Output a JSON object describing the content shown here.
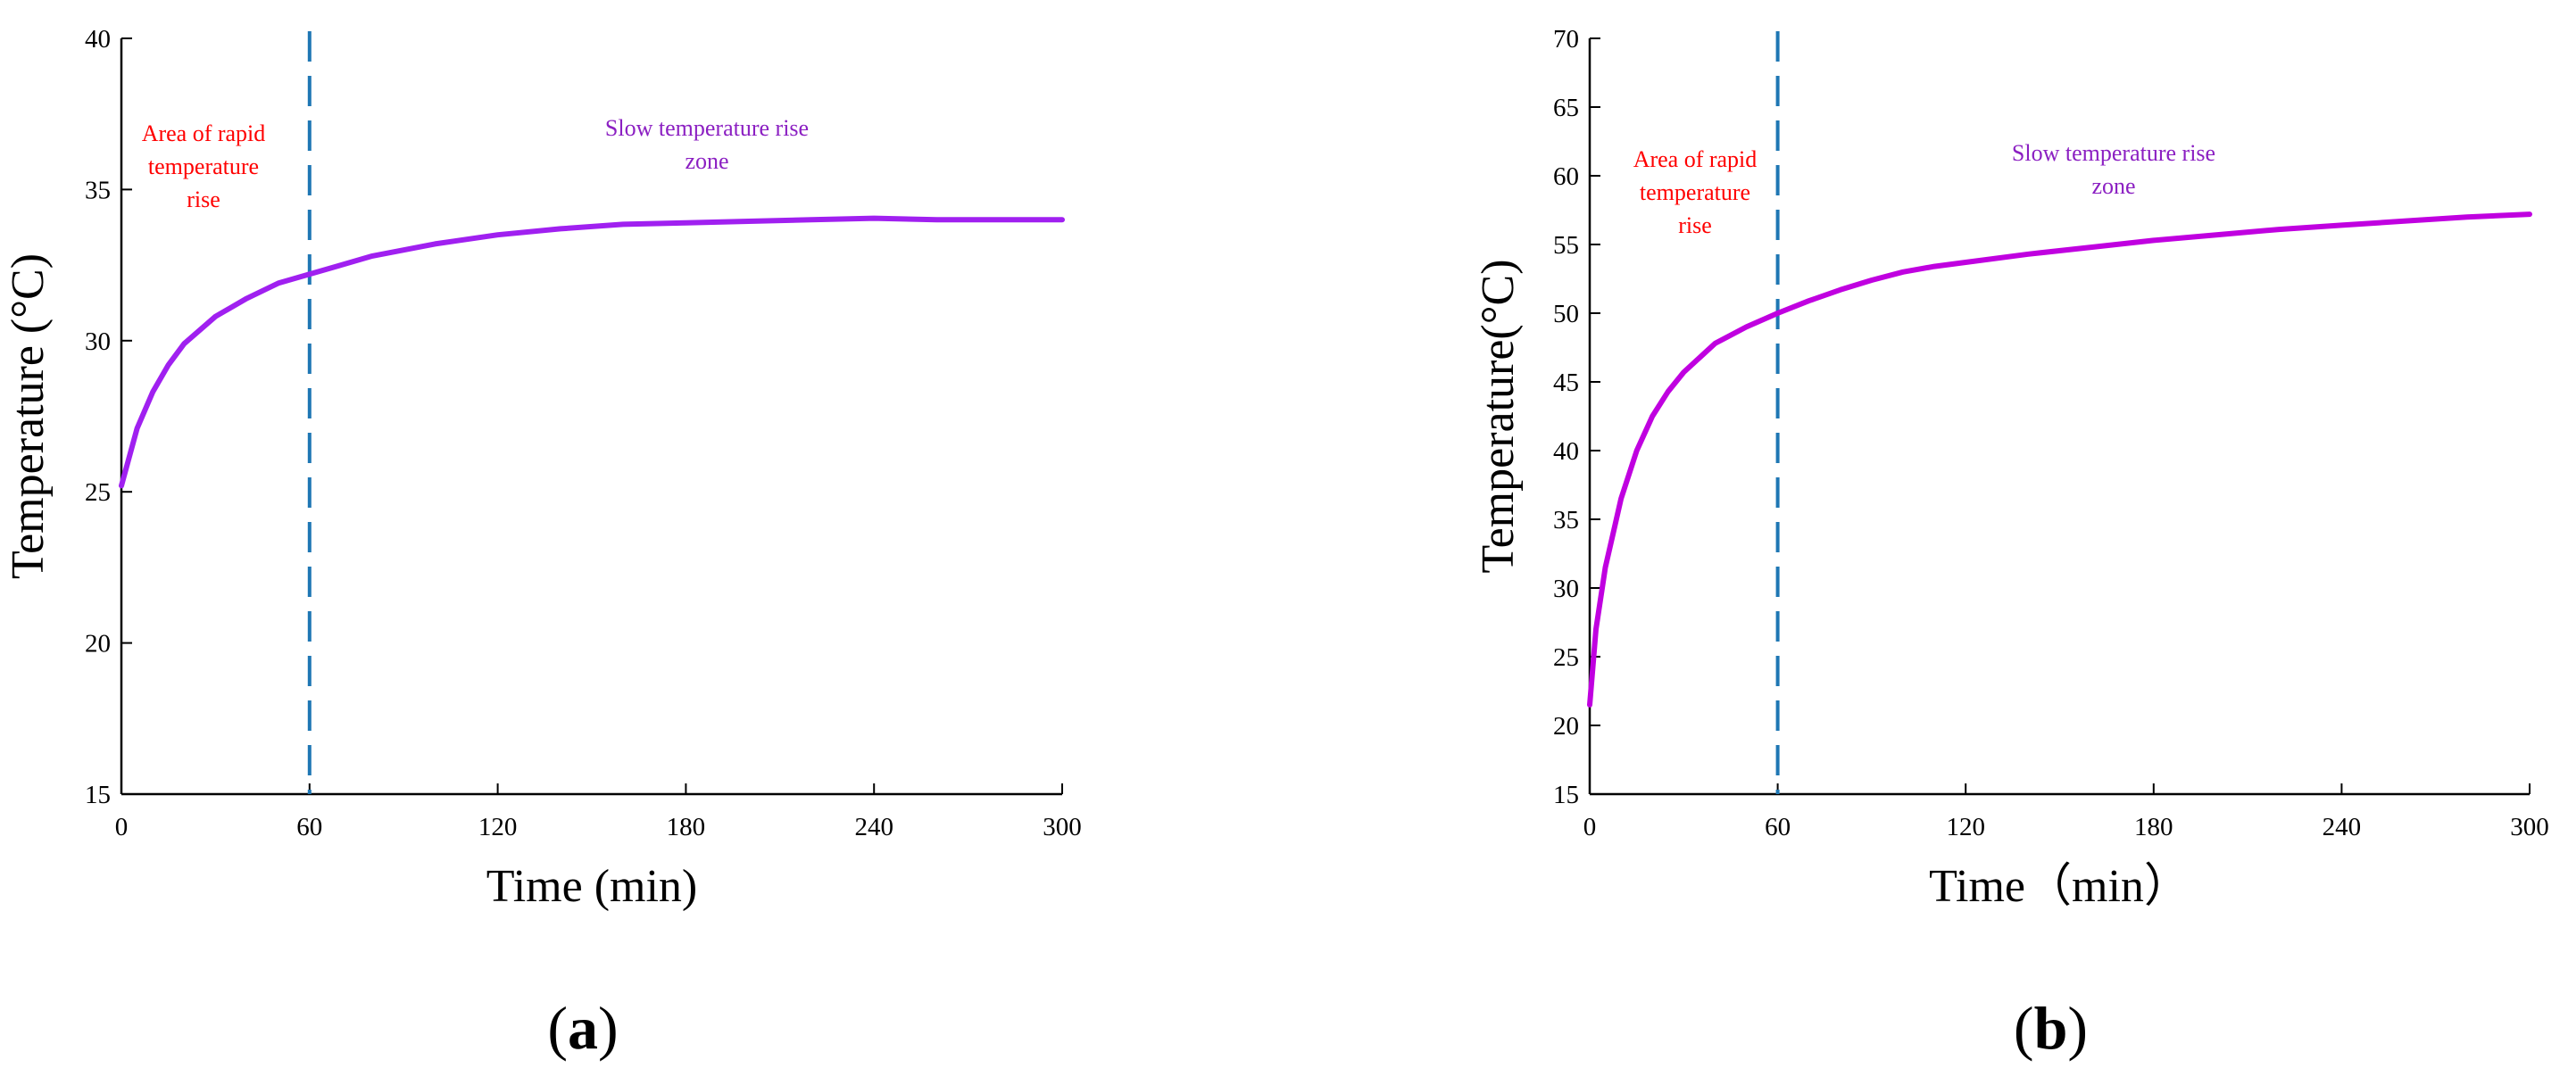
{
  "chart_data": [
    {
      "type": "line",
      "panel_label": "(a)",
      "xlabel": "Time (min)",
      "ylabel": "Temperature (°C)",
      "xlim": [
        0,
        300
      ],
      "ylim": [
        15,
        40
      ],
      "x_ticks": [
        0,
        60,
        120,
        180,
        240,
        300
      ],
      "y_ticks": [
        15,
        20,
        25,
        30,
        35,
        40
      ],
      "grid": false,
      "series": [
        {
          "color": "#A020F0",
          "x": [
            0,
            5,
            10,
            15,
            20,
            30,
            40,
            50,
            60,
            70,
            80,
            90,
            100,
            120,
            140,
            160,
            180,
            200,
            220,
            240,
            260,
            280,
            300
          ],
          "y": [
            25.2,
            27.1,
            28.3,
            29.2,
            29.9,
            30.8,
            31.4,
            31.9,
            32.2,
            32.5,
            32.8,
            33.0,
            33.2,
            33.5,
            33.7,
            33.85,
            33.9,
            33.95,
            34.0,
            34.05,
            34.0,
            34.0,
            34.0
          ]
        }
      ],
      "divider_x": 60,
      "divider_color": "#1F77B4",
      "annotations": [
        {
          "lines": [
            "Area of rapid",
            "temperature",
            "rise"
          ],
          "color": "#FF0000"
        },
        {
          "lines": [
            "Slow temperature rise",
            "zone"
          ],
          "color": "#8B1FC2"
        }
      ]
    },
    {
      "type": "line",
      "panel_label": "(b)",
      "xlabel": "Time（min）",
      "ylabel": "Temperature(°C)",
      "xlim": [
        0,
        300
      ],
      "ylim": [
        15,
        70
      ],
      "x_ticks": [
        0,
        60,
        120,
        180,
        240,
        300
      ],
      "y_ticks": [
        15,
        20,
        25,
        30,
        35,
        40,
        45,
        50,
        55,
        60,
        65,
        70
      ],
      "grid": false,
      "series": [
        {
          "color": "#C000E0",
          "x": [
            0,
            2,
            5,
            8,
            10,
            15,
            20,
            25,
            30,
            40,
            50,
            60,
            70,
            80,
            90,
            100,
            110,
            120,
            140,
            160,
            180,
            200,
            220,
            240,
            260,
            280,
            300
          ],
          "y": [
            21.5,
            27.0,
            31.5,
            34.5,
            36.5,
            40.0,
            42.5,
            44.3,
            45.7,
            47.8,
            49.0,
            50.0,
            50.9,
            51.7,
            52.4,
            53.0,
            53.4,
            53.7,
            54.3,
            54.8,
            55.3,
            55.7,
            56.1,
            56.4,
            56.7,
            57.0,
            57.2
          ]
        }
      ],
      "divider_x": 60,
      "divider_color": "#1F77B4",
      "annotations": [
        {
          "lines": [
            "Area of rapid",
            "temperature",
            "rise"
          ],
          "color": "#FF0000"
        },
        {
          "lines": [
            "Slow temperature rise",
            "zone"
          ],
          "color": "#8B1FC2"
        }
      ]
    }
  ]
}
